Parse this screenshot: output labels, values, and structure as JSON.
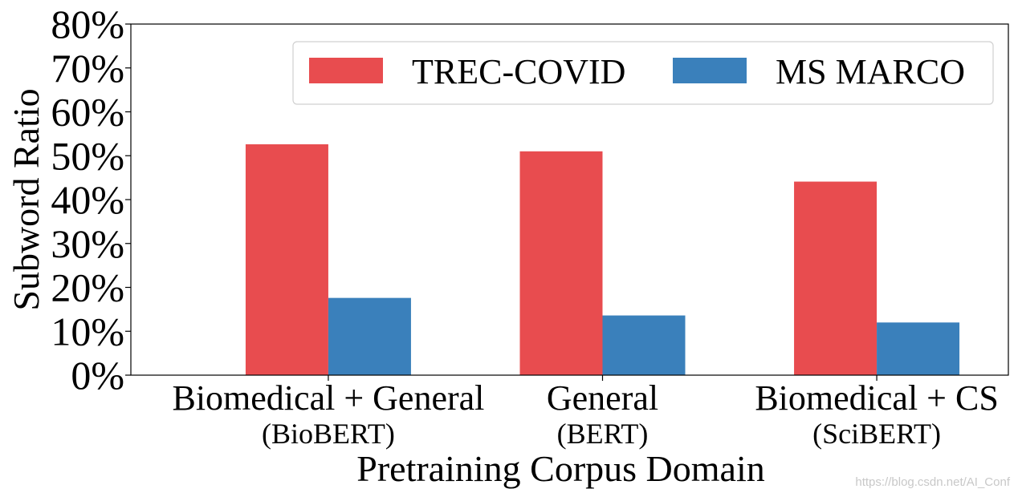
{
  "chart_data": {
    "type": "bar",
    "title": "",
    "xlabel": "Pretraining Corpus Domain",
    "ylabel": "Subword Ratio",
    "categories": [
      {
        "line1": "Biomedical + General",
        "line2": "(BioBERT)"
      },
      {
        "line1": "General",
        "line2": "(BERT)"
      },
      {
        "line1": "Biomedical + CS",
        "line2": "(SciBERT)"
      }
    ],
    "series": [
      {
        "name": "TREC-COVID",
        "color": "#e84c4f",
        "values": [
          52.6,
          51.0,
          44.1
        ]
      },
      {
        "name": "MS MARCO",
        "color": "#3a80bb",
        "values": [
          17.6,
          13.6,
          12.0
        ]
      }
    ],
    "ylim": [
      0,
      80
    ],
    "yticks": [
      0,
      10,
      20,
      30,
      40,
      50,
      60,
      70,
      80
    ],
    "ytick_suffix": "%",
    "grid": false,
    "legend_position": "top-right"
  },
  "watermark": "https://blog.csdn.net/AI_Conf"
}
